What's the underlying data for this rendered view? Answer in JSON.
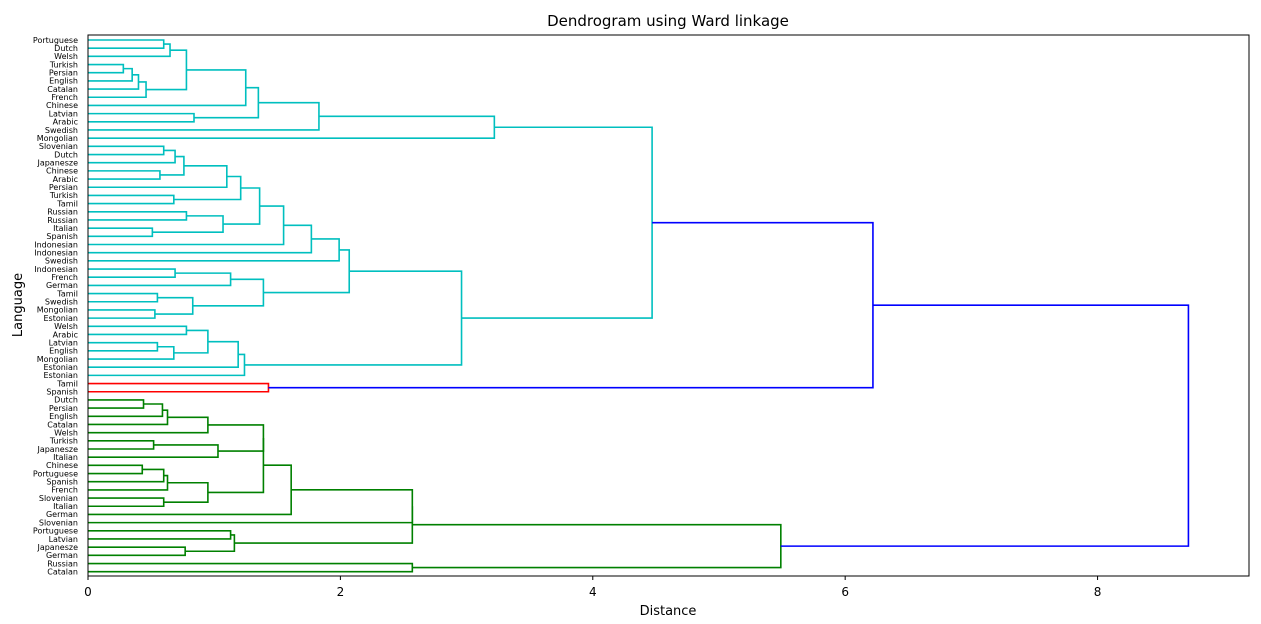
{
  "chart_data": {
    "type": "dendrogram",
    "orientation": "horizontal",
    "title": "Dendrogram using Ward linkage",
    "xlabel": "Distance",
    "ylabel": "Language",
    "xlim": [
      0,
      9.2
    ],
    "xticks": [
      0,
      2,
      4,
      6,
      8
    ],
    "grid": false,
    "colors": {
      "cluster_cyan": "#00bfbf",
      "cluster_red": "#ff0000",
      "cluster_green": "#008000",
      "above_threshold": "#0000ff"
    },
    "leaves": [
      "Portuguese",
      "Dutch",
      "Welsh",
      "Turkish",
      "Persian",
      "English",
      "Catalan",
      "French",
      "Chinese",
      "Latvian",
      "Arabic",
      "Swedish",
      "Mongolian",
      "Slovenian",
      "Dutch",
      "Japanesze",
      "Chinese",
      "Arabic",
      "Persian",
      "Turkish",
      "Tamil",
      "Russian",
      "Russian",
      "Italian",
      "Spanish",
      "Indonesian",
      "Indonesian",
      "Swedish",
      "Indonesian",
      "French",
      "German",
      "Tamil",
      "Swedish",
      "Mongolian",
      "Estonian",
      "Welsh",
      "Arabic",
      "Latvian",
      "English",
      "Mongolian",
      "Estonian",
      "Estonian",
      "Tamil",
      "Spanish",
      "Dutch",
      "Persian",
      "English",
      "Catalan",
      "Welsh",
      "Turkish",
      "Japanesze",
      "Italian",
      "Chinese",
      "Portuguese",
      "Spanish",
      "French",
      "Slovenian",
      "Italian",
      "German",
      "Slovenian",
      "Portuguese",
      "Latvian",
      "Japanesze",
      "German",
      "Russian",
      "Catalan"
    ],
    "merges": [
      {
        "id": "a1",
        "left": "L0",
        "right": "L1",
        "height": 0.6,
        "color": "cyan"
      },
      {
        "id": "a2",
        "left": "a1",
        "right": "L2",
        "height": 0.65,
        "color": "cyan"
      },
      {
        "id": "a3",
        "left": "L3",
        "right": "L4",
        "height": 0.28,
        "color": "cyan"
      },
      {
        "id": "a4",
        "left": "a3",
        "right": "L5",
        "height": 0.35,
        "color": "cyan"
      },
      {
        "id": "a5",
        "left": "a4",
        "right": "L6",
        "height": 0.4,
        "color": "cyan"
      },
      {
        "id": "a6",
        "left": "a5",
        "right": "L7",
        "height": 0.46,
        "color": "cyan"
      },
      {
        "id": "a7",
        "left": "a2",
        "right": "a6",
        "height": 0.78,
        "color": "cyan"
      },
      {
        "id": "a8",
        "left": "a7",
        "right": "L8",
        "height": 1.25,
        "color": "cyan"
      },
      {
        "id": "a9",
        "left": "L9",
        "right": "L10",
        "height": 0.84,
        "color": "cyan"
      },
      {
        "id": "a10",
        "left": "a8",
        "right": "a9",
        "height": 1.35,
        "color": "cyan"
      },
      {
        "id": "a11",
        "left": "a10",
        "right": "L11",
        "height": 1.83,
        "color": "cyan"
      },
      {
        "id": "a12",
        "left": "a11",
        "right": "L12",
        "height": 3.22,
        "color": "cyan"
      },
      {
        "id": "b1",
        "left": "L13",
        "right": "L14",
        "height": 0.6,
        "color": "cyan"
      },
      {
        "id": "b2",
        "left": "b1",
        "right": "L15",
        "height": 0.69,
        "color": "cyan"
      },
      {
        "id": "b3",
        "left": "L16",
        "right": "L17",
        "height": 0.57,
        "color": "cyan"
      },
      {
        "id": "b4",
        "left": "b2",
        "right": "b3",
        "height": 0.76,
        "color": "cyan"
      },
      {
        "id": "b5",
        "left": "b4",
        "right": "L18",
        "height": 1.1,
        "color": "cyan"
      },
      {
        "id": "b6",
        "left": "L19",
        "right": "L20",
        "height": 0.68,
        "color": "cyan"
      },
      {
        "id": "b7",
        "left": "b5",
        "right": "b6",
        "height": 1.21,
        "color": "cyan"
      },
      {
        "id": "b8",
        "left": "L21",
        "right": "L22",
        "height": 0.78,
        "color": "cyan"
      },
      {
        "id": "b9",
        "left": "L23",
        "right": "L24",
        "height": 0.51,
        "color": "cyan"
      },
      {
        "id": "b10",
        "left": "b8",
        "right": "b9",
        "height": 1.07,
        "color": "cyan"
      },
      {
        "id": "b11",
        "left": "b7",
        "right": "b10",
        "height": 1.36,
        "color": "cyan"
      },
      {
        "id": "b12",
        "left": "b11",
        "right": "L25",
        "height": 1.55,
        "color": "cyan"
      },
      {
        "id": "b13",
        "left": "b12",
        "right": "L26",
        "height": 1.77,
        "color": "cyan"
      },
      {
        "id": "b14",
        "left": "b13",
        "right": "L27",
        "height": 1.99,
        "color": "cyan"
      },
      {
        "id": "b15",
        "left": "L28",
        "right": "L29",
        "height": 0.69,
        "color": "cyan"
      },
      {
        "id": "b16",
        "left": "b15",
        "right": "L30",
        "height": 1.13,
        "color": "cyan"
      },
      {
        "id": "b17",
        "left": "L31",
        "right": "L32",
        "height": 0.55,
        "color": "cyan"
      },
      {
        "id": "b18",
        "left": "L33",
        "right": "L34",
        "height": 0.53,
        "color": "cyan"
      },
      {
        "id": "b19",
        "left": "b17",
        "right": "b18",
        "height": 0.83,
        "color": "cyan"
      },
      {
        "id": "b20",
        "left": "b16",
        "right": "b19",
        "height": 1.39,
        "color": "cyan"
      },
      {
        "id": "b21",
        "left": "b14",
        "right": "b20",
        "height": 2.07,
        "color": "cyan"
      },
      {
        "id": "b22",
        "left": "L35",
        "right": "L36",
        "height": 0.78,
        "color": "cyan"
      },
      {
        "id": "b23",
        "left": "L37",
        "right": "L38",
        "height": 0.55,
        "color": "cyan"
      },
      {
        "id": "b24",
        "left": "b23",
        "right": "L39",
        "height": 0.68,
        "color": "cyan"
      },
      {
        "id": "b25",
        "left": "b22",
        "right": "b24",
        "height": 0.95,
        "color": "cyan"
      },
      {
        "id": "b26",
        "left": "b25",
        "right": "L40",
        "height": 1.19,
        "color": "cyan"
      },
      {
        "id": "b27",
        "left": "b26",
        "right": "L41",
        "height": 1.24,
        "color": "cyan"
      },
      {
        "id": "b28",
        "left": "b21",
        "right": "b27",
        "height": 2.96,
        "color": "cyan"
      },
      {
        "id": "ab",
        "left": "a12",
        "right": "b28",
        "height": 4.47,
        "color": "cyan"
      },
      {
        "id": "r1",
        "left": "L42",
        "right": "L43",
        "height": 1.43,
        "color": "red"
      },
      {
        "id": "abr",
        "left": "ab",
        "right": "r1",
        "height": 6.22,
        "color": "blue"
      },
      {
        "id": "g1",
        "left": "L44",
        "right": "L45",
        "height": 0.44,
        "color": "green"
      },
      {
        "id": "g2",
        "left": "g1",
        "right": "L46",
        "height": 0.59,
        "color": "green"
      },
      {
        "id": "g3",
        "left": "g2",
        "right": "L47",
        "height": 0.63,
        "color": "green"
      },
      {
        "id": "g4",
        "left": "g3",
        "right": "L48",
        "height": 0.95,
        "color": "green"
      },
      {
        "id": "g5",
        "left": "L49",
        "right": "L50",
        "height": 0.52,
        "color": "green"
      },
      {
        "id": "g6",
        "left": "g5",
        "right": "L51",
        "height": 1.03,
        "color": "green"
      },
      {
        "id": "g7",
        "left": "g4",
        "right": "g6",
        "height": 1.39,
        "color": "green"
      },
      {
        "id": "g8",
        "left": "L52",
        "right": "L53",
        "height": 0.43,
        "color": "green"
      },
      {
        "id": "g9",
        "left": "g8",
        "right": "L54",
        "height": 0.6,
        "color": "green"
      },
      {
        "id": "g10",
        "left": "g9",
        "right": "L55",
        "height": 0.63,
        "color": "green"
      },
      {
        "id": "g11",
        "left": "L56",
        "right": "L57",
        "height": 0.6,
        "color": "green"
      },
      {
        "id": "g12",
        "left": "g10",
        "right": "g11",
        "height": 0.95,
        "color": "green"
      },
      {
        "id": "g13",
        "left": "g7",
        "right": "g12",
        "height": 1.39,
        "color": "green"
      },
      {
        "id": "g14",
        "left": "g13",
        "right": "L58",
        "height": 1.61,
        "color": "green"
      },
      {
        "id": "g15",
        "left": "g14",
        "right": "L59",
        "height": 2.57,
        "color": "green"
      },
      {
        "id": "g16",
        "left": "L60",
        "right": "L61",
        "height": 1.13,
        "color": "green"
      },
      {
        "id": "g17",
        "left": "L62",
        "right": "L63",
        "height": 0.77,
        "color": "green"
      },
      {
        "id": "g18",
        "left": "g16",
        "right": "g17",
        "height": 1.16,
        "color": "green"
      },
      {
        "id": "g19",
        "left": "g15",
        "right": "g18",
        "height": 2.57,
        "color": "green"
      },
      {
        "id": "g20",
        "left": "L64",
        "right": "L65",
        "height": 2.57,
        "color": "green"
      },
      {
        "id": "g21",
        "left": "g19",
        "right": "g20",
        "height": 5.49,
        "color": "green"
      },
      {
        "id": "root",
        "left": "abr",
        "right": "g21",
        "height": 8.72,
        "color": "blue"
      }
    ]
  }
}
